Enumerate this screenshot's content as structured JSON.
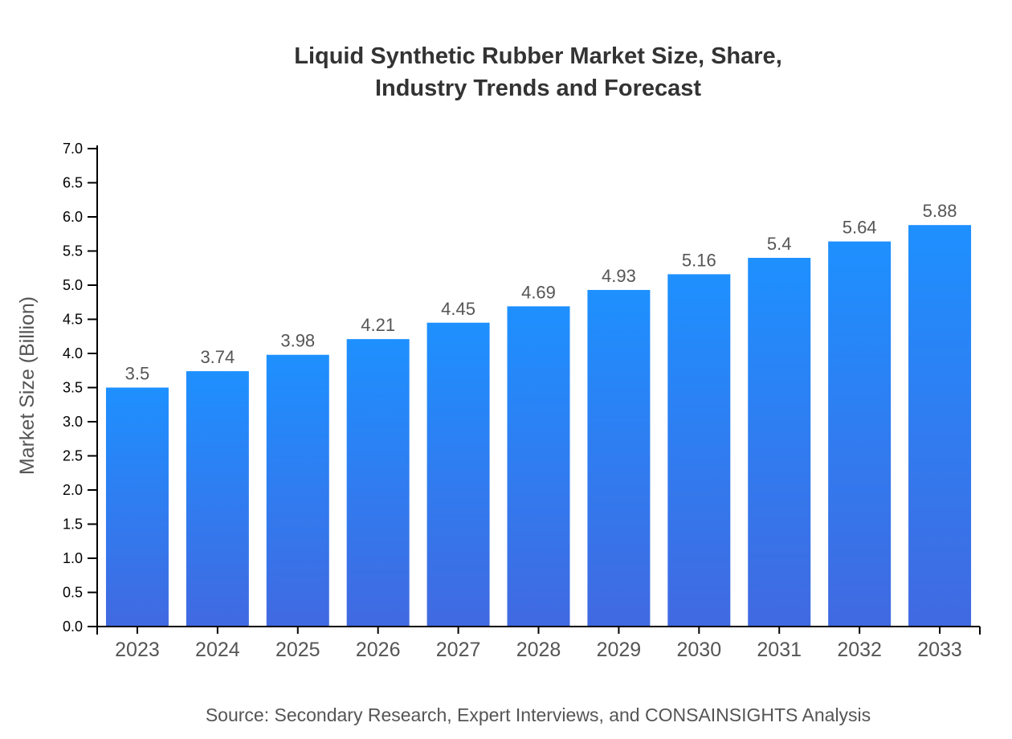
{
  "chart_data": {
    "type": "bar",
    "title_lines": [
      "Liquid Synthetic Rubber Market Size, Share,",
      "Industry Trends and Forecast"
    ],
    "categories": [
      "2023",
      "2024",
      "2025",
      "2026",
      "2027",
      "2028",
      "2029",
      "2030",
      "2031",
      "2032",
      "2033"
    ],
    "values": [
      3.5,
      3.74,
      3.98,
      4.21,
      4.45,
      4.69,
      4.93,
      5.16,
      5.4,
      5.64,
      5.88
    ],
    "data_labels": [
      "3.5",
      "3.74",
      "3.98",
      "4.21",
      "4.45",
      "4.69",
      "4.93",
      "5.16",
      "5.4",
      "5.64",
      "5.88"
    ],
    "xlabel": "",
    "ylabel": "Market Size (Billion)",
    "ylim": [
      0,
      7.0
    ],
    "yticks": [
      "0.0",
      "0.5",
      "1.0",
      "1.5",
      "2.0",
      "2.5",
      "3.0",
      "3.5",
      "4.0",
      "4.5",
      "5.0",
      "5.5",
      "6.0",
      "6.5",
      "7.0"
    ],
    "grid": false,
    "colors": {
      "bar_top": "#1e90ff",
      "bar_bottom": "#4169e1"
    }
  },
  "source": "Source: Secondary Research, Expert Interviews, and CONSAINSIGHTS Analysis"
}
